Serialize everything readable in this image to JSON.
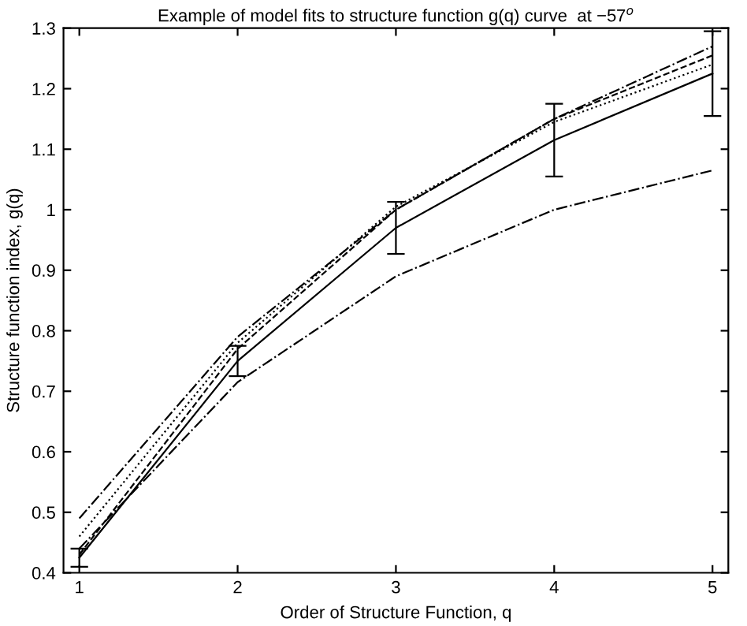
{
  "chart_data": {
    "type": "line",
    "title": "Example of model fits to structure function g(q) curve  at −57$^{o}$",
    "xlabel": "Order of Structure Function, q",
    "ylabel": "Structure function index, g(q)",
    "x": [
      1,
      2,
      3,
      4,
      5
    ],
    "series": [
      {
        "color": "#000000",
        "line_style": "solid",
        "values": [
          0.425,
          0.75,
          0.97,
          1.115,
          1.225
        ],
        "errors": [
          0.015,
          0.025,
          0.043,
          0.06,
          0.07
        ]
      },
      {
        "color": "#000000",
        "line_style": "dashed",
        "values": [
          0.43,
          0.77,
          1.0,
          1.15,
          1.255
        ]
      },
      {
        "color": "#000000",
        "line_style": "dashdot",
        "values": [
          0.49,
          0.79,
          1.0,
          1.15,
          1.27
        ]
      },
      {
        "color": "#000000",
        "line_style": "dotted",
        "values": [
          0.46,
          0.78,
          1.005,
          1.145,
          1.24
        ]
      },
      {
        "color": "#000000",
        "line_style": "dashdot",
        "values": [
          0.44,
          0.715,
          0.89,
          1.0,
          1.065
        ]
      }
    ],
    "xlim": [
      0.9,
      5.1
    ],
    "ylim": [
      0.4,
      1.3
    ],
    "xticks": [
      1,
      2,
      3,
      4,
      5
    ],
    "yticks": [
      0.4,
      0.5,
      0.6,
      0.7,
      0.8,
      0.9,
      {
        "value": 1,
        "label": "1"
      },
      1.1,
      1.2,
      1.3
    ],
    "grid": false,
    "legend": false
  }
}
